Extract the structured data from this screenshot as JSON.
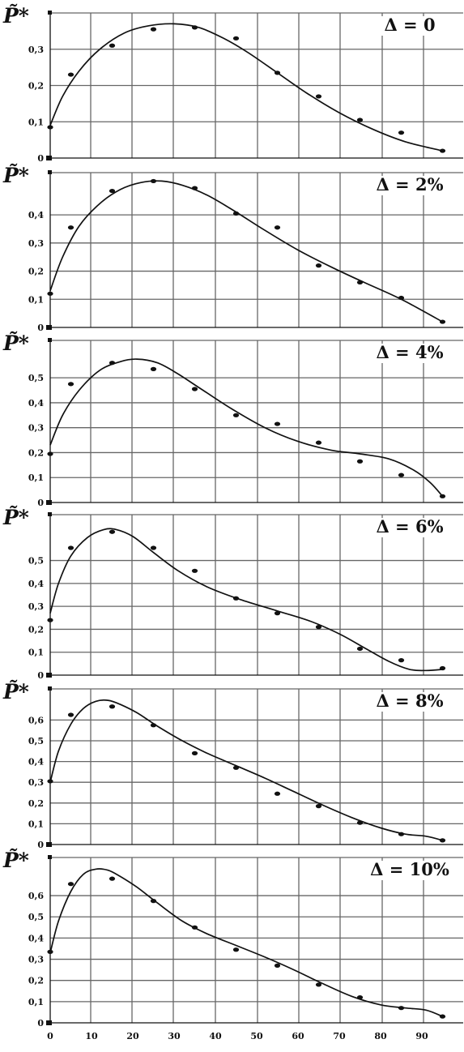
{
  "chart_data": [
    {
      "type": "scatter",
      "ylabel": "P̃*",
      "label": "Δ = 0",
      "xlim": [
        0,
        100
      ],
      "ylim": [
        0,
        0.4
      ],
      "yticks": [
        0,
        0.1,
        0.2,
        0.3
      ],
      "ytick_labels": [
        "0",
        "0,1",
        "0,2",
        "0,3"
      ],
      "x": [
        0,
        5,
        15,
        25,
        35,
        45,
        55,
        65,
        75,
        85,
        95
      ],
      "y": [
        0.085,
        0.23,
        0.31,
        0.355,
        0.36,
        0.33,
        0.235,
        0.17,
        0.105,
        0.07,
        0.02
      ],
      "curve_x": [
        0,
        3,
        7,
        12,
        18,
        24,
        30,
        36,
        42,
        48,
        55,
        62,
        70,
        78,
        86,
        95
      ],
      "curve_y": [
        0.09,
        0.17,
        0.24,
        0.3,
        0.345,
        0.365,
        0.37,
        0.36,
        0.33,
        0.29,
        0.235,
        0.18,
        0.125,
        0.08,
        0.045,
        0.02
      ],
      "grid": true
    },
    {
      "type": "scatter",
      "ylabel": "P̃*",
      "label": "Δ = 2%",
      "xlim": [
        0,
        100
      ],
      "ylim": [
        0,
        0.55
      ],
      "yticks": [
        0,
        0.1,
        0.2,
        0.3,
        0.4
      ],
      "ytick_labels": [
        "0",
        "0,1",
        "0,2",
        "0,3",
        "0,4"
      ],
      "x": [
        0,
        5,
        15,
        25,
        35,
        45,
        55,
        65,
        75,
        85,
        95
      ],
      "y": [
        0.12,
        0.355,
        0.485,
        0.52,
        0.495,
        0.405,
        0.355,
        0.22,
        0.16,
        0.105,
        0.02
      ],
      "curve_x": [
        0,
        3,
        7,
        12,
        17,
        22,
        27,
        32,
        38,
        45,
        52,
        60,
        68,
        76,
        85,
        95
      ],
      "curve_y": [
        0.13,
        0.25,
        0.36,
        0.44,
        0.49,
        0.515,
        0.52,
        0.505,
        0.47,
        0.41,
        0.345,
        0.275,
        0.215,
        0.16,
        0.1,
        0.02
      ],
      "grid": true
    },
    {
      "type": "scatter",
      "ylabel": "P̃*",
      "label": "Δ = 4%",
      "xlim": [
        0,
        100
      ],
      "ylim": [
        0,
        0.65
      ],
      "yticks": [
        0,
        0.1,
        0.2,
        0.3,
        0.4,
        0.5
      ],
      "ytick_labels": [
        "0",
        "0,1",
        "0,2",
        "0,3",
        "0,4",
        "0,5"
      ],
      "x": [
        0,
        5,
        15,
        25,
        35,
        45,
        55,
        65,
        75,
        85,
        95
      ],
      "y": [
        0.195,
        0.475,
        0.56,
        0.535,
        0.455,
        0.35,
        0.315,
        0.24,
        0.165,
        0.11,
        0.025
      ],
      "curve_x": [
        0,
        3,
        7,
        12,
        17,
        21,
        26,
        31,
        37,
        44,
        52,
        60,
        68,
        75,
        82,
        88,
        92,
        95
      ],
      "curve_y": [
        0.23,
        0.35,
        0.45,
        0.53,
        0.565,
        0.575,
        0.56,
        0.515,
        0.45,
        0.375,
        0.3,
        0.245,
        0.21,
        0.195,
        0.175,
        0.13,
        0.08,
        0.025
      ],
      "grid": true
    },
    {
      "type": "scatter",
      "ylabel": "P̃*",
      "label": "Δ = 6%",
      "xlim": [
        0,
        100
      ],
      "ylim": [
        0,
        0.7
      ],
      "yticks": [
        0,
        0.1,
        0.2,
        0.3,
        0.4,
        0.5
      ],
      "ytick_labels": [
        "0",
        "0,1",
        "0,2",
        "0,3",
        "0,4",
        "0,5"
      ],
      "x": [
        0,
        5,
        15,
        25,
        35,
        45,
        55,
        65,
        75,
        85,
        95
      ],
      "y": [
        0.24,
        0.555,
        0.625,
        0.555,
        0.455,
        0.335,
        0.27,
        0.21,
        0.115,
        0.065,
        0.03
      ],
      "curve_x": [
        0,
        2,
        5,
        9,
        13,
        16,
        20,
        25,
        31,
        38,
        46,
        55,
        63,
        70,
        76,
        82,
        87,
        91,
        95
      ],
      "curve_y": [
        0.27,
        0.4,
        0.52,
        0.6,
        0.635,
        0.635,
        0.605,
        0.535,
        0.455,
        0.385,
        0.33,
        0.28,
        0.235,
        0.18,
        0.12,
        0.06,
        0.025,
        0.02,
        0.025
      ],
      "grid": true
    },
    {
      "type": "scatter",
      "ylabel": "P̃*",
      "label": "Δ = 8%",
      "xlim": [
        0,
        100
      ],
      "ylim": [
        0,
        0.75
      ],
      "yticks": [
        0,
        0.1,
        0.2,
        0.3,
        0.4,
        0.5,
        0.6
      ],
      "ytick_labels": [
        "0",
        "0,1",
        "0,2",
        "0,3",
        "0,4",
        "0,5",
        "0,6"
      ],
      "x": [
        0,
        5,
        15,
        25,
        35,
        45,
        55,
        65,
        75,
        85,
        95
      ],
      "y": [
        0.305,
        0.625,
        0.665,
        0.575,
        0.44,
        0.37,
        0.245,
        0.185,
        0.105,
        0.05,
        0.02
      ],
      "curve_x": [
        0,
        2,
        5,
        8,
        11,
        14,
        17,
        21,
        26,
        32,
        38,
        45,
        52,
        59,
        66,
        73,
        80,
        86,
        91,
        95
      ],
      "curve_y": [
        0.3,
        0.45,
        0.58,
        0.655,
        0.69,
        0.695,
        0.675,
        0.635,
        0.57,
        0.5,
        0.44,
        0.38,
        0.32,
        0.255,
        0.19,
        0.13,
        0.08,
        0.05,
        0.04,
        0.02
      ],
      "grid": true
    },
    {
      "type": "scatter",
      "ylabel": "P̃*",
      "label": "Δ = 10%",
      "xlim": [
        0,
        100
      ],
      "ylim": [
        0,
        0.78
      ],
      "yticks": [
        0,
        0.1,
        0.2,
        0.3,
        0.4,
        0.5,
        0.6
      ],
      "ytick_labels": [
        "0",
        "0,1",
        "0,2",
        "0,3",
        "0,4",
        "0,5",
        "0,6"
      ],
      "xticks": [
        0,
        10,
        20,
        30,
        40,
        50,
        60,
        70,
        80,
        90
      ],
      "xtick_labels": [
        "0",
        "10",
        "20",
        "30",
        "40",
        "50",
        "60",
        "70",
        "80",
        "90"
      ],
      "x": [
        0,
        5,
        15,
        25,
        35,
        45,
        55,
        65,
        75,
        85,
        95
      ],
      "y": [
        0.335,
        0.655,
        0.68,
        0.575,
        0.45,
        0.345,
        0.27,
        0.18,
        0.12,
        0.07,
        0.03
      ],
      "curve_x": [
        0,
        2,
        5,
        8,
        11,
        14,
        17,
        21,
        26,
        32,
        38,
        45,
        52,
        59,
        66,
        73,
        80,
        86,
        91,
        95
      ],
      "curve_y": [
        0.33,
        0.48,
        0.62,
        0.7,
        0.725,
        0.72,
        0.69,
        0.64,
        0.565,
        0.48,
        0.42,
        0.365,
        0.31,
        0.25,
        0.185,
        0.125,
        0.085,
        0.07,
        0.06,
        0.03
      ],
      "grid": true
    }
  ]
}
